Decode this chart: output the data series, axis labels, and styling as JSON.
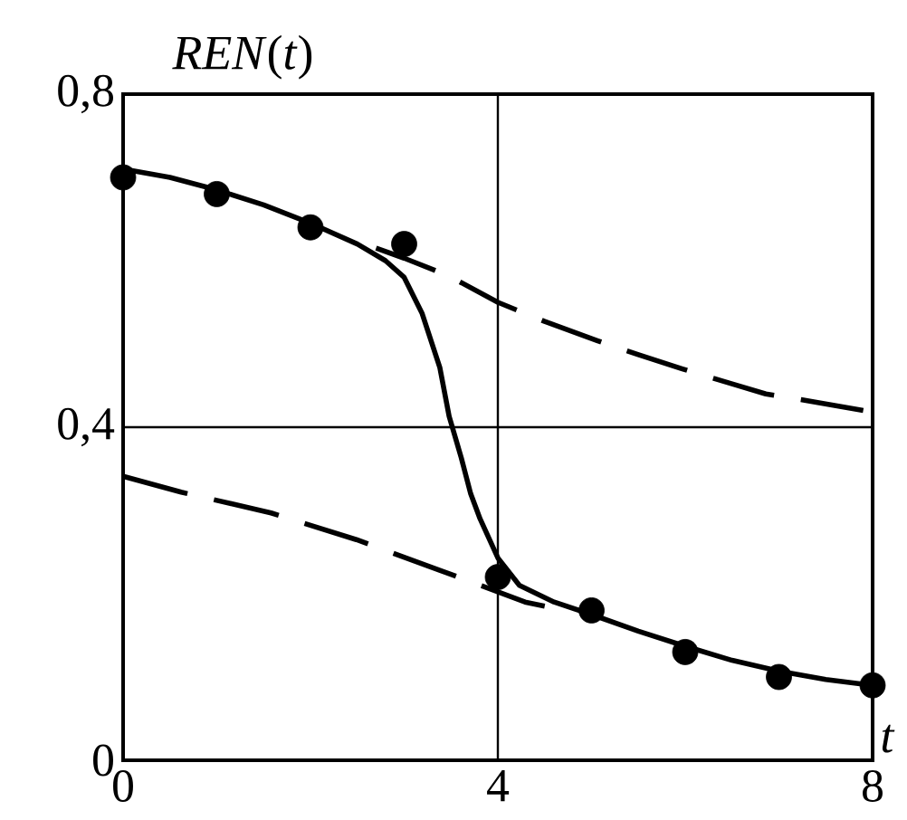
{
  "chart_data": {
    "type": "line",
    "ylabel": "*REN*(*t*)",
    "xlabel": "t",
    "xlim": [
      0,
      8
    ],
    "ylim": [
      0,
      0.8
    ],
    "xticks": [
      0,
      4,
      8
    ],
    "yticks": [
      0,
      {
        "value": 0.4,
        "label": "0,4"
      },
      {
        "value": 0.8,
        "label": "0,8"
      }
    ],
    "grid": true,
    "series": [
      {
        "color": "#000000",
        "line_style": "dashed",
        "marker": "none",
        "x": [
          2.7,
          3.0,
          3.36,
          3.57,
          4.0,
          4.5,
          5.06,
          5.5,
          5.97,
          6.5,
          6.86,
          7.4,
          7.9
        ],
        "values": [
          0.615,
          0.603,
          0.587,
          0.576,
          0.55,
          0.527,
          0.504,
          0.487,
          0.47,
          0.452,
          0.44,
          0.43,
          0.42
        ]
      },
      {
        "color": "#000000",
        "line_style": "dashed",
        "marker": "none",
        "x": [
          0,
          0.62,
          1.58,
          2.49,
          3.38,
          3.65,
          4.29,
          4.5
        ],
        "values": [
          0.341,
          0.322,
          0.297,
          0.265,
          0.228,
          0.217,
          0.19,
          0.185
        ]
      },
      {
        "color": "#000000",
        "line_style": "solid",
        "marker": "none",
        "x": [
          0,
          0.5,
          1,
          1.5,
          2,
          2.5,
          2.8,
          3.0,
          3.19,
          3.38,
          3.48,
          3.61,
          3.71,
          3.81,
          4.0,
          4.23,
          4.6,
          5,
          5.5,
          6,
          6.5,
          7,
          7.5,
          8
        ],
        "values": [
          0.71,
          0.7,
          0.685,
          0.667,
          0.645,
          0.62,
          0.6,
          0.58,
          0.537,
          0.472,
          0.413,
          0.363,
          0.32,
          0.29,
          0.243,
          0.21,
          0.19,
          0.175,
          0.155,
          0.137,
          0.12,
          0.107,
          0.097,
          0.09
        ]
      },
      {
        "type": "scatter",
        "color": "#000000",
        "marker": "circle",
        "x": [
          0,
          1,
          2,
          3,
          4,
          5,
          6,
          7,
          8
        ],
        "values": [
          0.7,
          0.68,
          0.64,
          0.62,
          0.22,
          0.18,
          0.13,
          0.1,
          0.09
        ]
      }
    ]
  }
}
